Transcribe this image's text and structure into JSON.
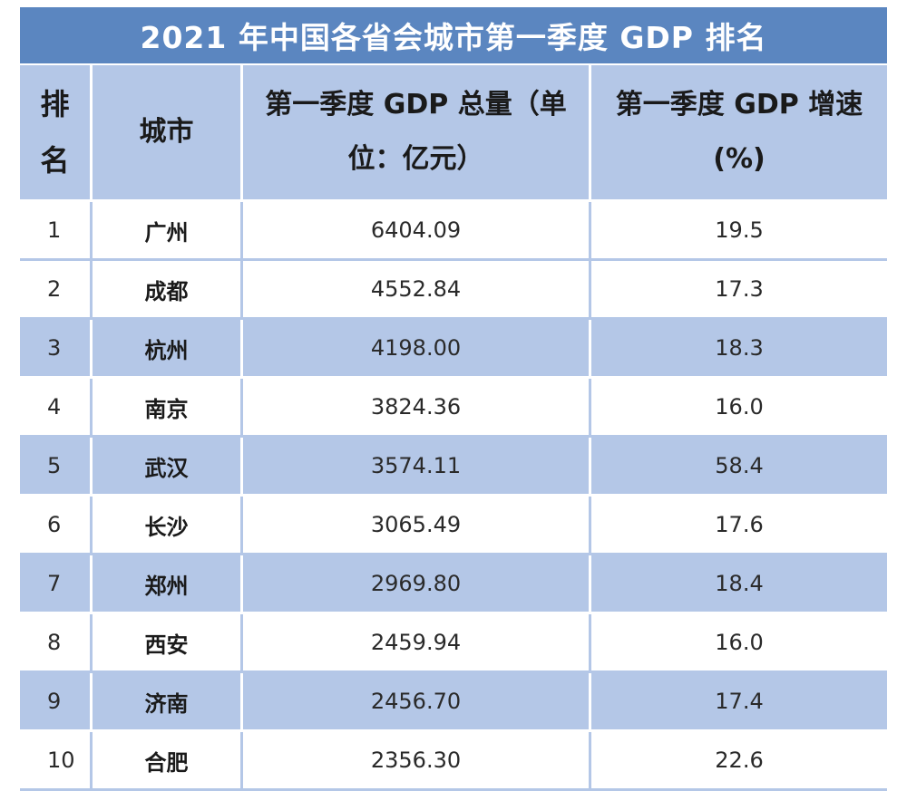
{
  "title": "2021 年中国各省会城市第一季度 GDP 排名",
  "headers": {
    "rank_line1": "排",
    "rank_line2": "名",
    "city": "城市",
    "gdp_line1": "第一季度 GDP 总量（单",
    "gdp_line2": "位：亿元）",
    "rate_line1": "第一季度 GDP 增速",
    "rate_line2": "(%)"
  },
  "rows": [
    {
      "rank": "1",
      "city": "广州",
      "gdp": "6404.09",
      "rate": "19.5"
    },
    {
      "rank": "2",
      "city": "成都",
      "gdp": "4552.84",
      "rate": "17.3"
    },
    {
      "rank": "3",
      "city": "杭州",
      "gdp": "4198.00",
      "rate": "18.3"
    },
    {
      "rank": "4",
      "city": "南京",
      "gdp": "3824.36",
      "rate": "16.0"
    },
    {
      "rank": "5",
      "city": "武汉",
      "gdp": "3574.11",
      "rate": "58.4"
    },
    {
      "rank": "6",
      "city": "长沙",
      "gdp": "3065.49",
      "rate": "17.6"
    },
    {
      "rank": "7",
      "city": "郑州",
      "gdp": "2969.80",
      "rate": "18.4"
    },
    {
      "rank": "8",
      "city": "西安",
      "gdp": "2459.94",
      "rate": "16.0"
    },
    {
      "rank": "9",
      "city": "济南",
      "gdp": "2456.70",
      "rate": "17.4"
    },
    {
      "rank": "10",
      "city": "合肥",
      "gdp": "2356.30",
      "rate": "22.6"
    }
  ],
  "colors": {
    "title_bg": "#5b86c0",
    "header_bg": "#b4c7e7",
    "band_bg": "#b4c7e7",
    "row_bg": "#ffffff"
  }
}
